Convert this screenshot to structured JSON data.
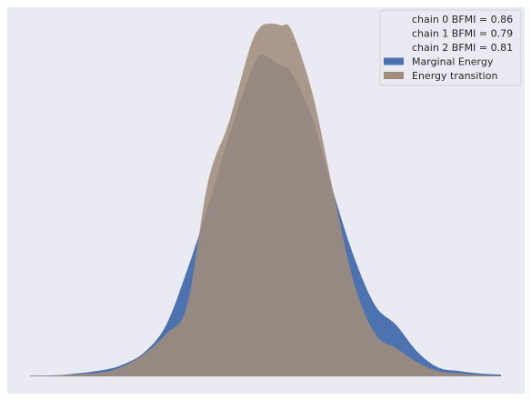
{
  "chart_data": {
    "type": "area",
    "title": "",
    "xlabel": "",
    "ylabel": "",
    "grid": true,
    "legend_position": "top-right",
    "xlim": [
      -11.5,
      11.0
    ],
    "ylim": [
      0,
      1.0
    ],
    "legend": [
      {
        "label": "chain  0 BFMI = 0.86",
        "swatch": false
      },
      {
        "label": "chain  1 BFMI = 0.79",
        "swatch": false
      },
      {
        "label": "chain  2 BFMI = 0.81",
        "swatch": false
      },
      {
        "label": "Marginal Energy",
        "swatch": true,
        "color": "#4c72b0"
      },
      {
        "label": "Energy transition",
        "swatch": true,
        "color": "#a08c7b"
      }
    ],
    "series": [
      {
        "name": "Marginal Energy",
        "color": "#4c72b0",
        "x": [
          -11.5,
          -10,
          -8,
          -7,
          -6,
          -5,
          -4,
          -3,
          -2,
          -1,
          -0.5,
          0,
          0.5,
          1,
          2,
          3,
          4,
          5,
          6,
          7,
          8,
          9,
          10,
          11
        ],
        "y": [
          0.002,
          0.004,
          0.018,
          0.035,
          0.07,
          0.145,
          0.3,
          0.48,
          0.68,
          0.855,
          0.91,
          0.9,
          0.88,
          0.86,
          0.73,
          0.52,
          0.335,
          0.2,
          0.145,
          0.07,
          0.025,
          0.015,
          0.008,
          0.005
        ]
      },
      {
        "name": "Energy transition",
        "color": "#a08c7b",
        "x": [
          -11.5,
          -10,
          -8,
          -7,
          -6,
          -5,
          -4,
          -3,
          -2,
          -1,
          -0.5,
          0,
          0.5,
          1,
          2,
          3,
          4,
          5,
          6,
          7,
          8,
          9,
          10,
          11
        ],
        "y": [
          0.002,
          0.004,
          0.012,
          0.03,
          0.065,
          0.12,
          0.2,
          0.55,
          0.72,
          0.93,
          0.99,
          1.0,
          0.995,
          0.98,
          0.8,
          0.52,
          0.26,
          0.12,
          0.08,
          0.04,
          0.015,
          0.008,
          0.004,
          0.002
        ]
      }
    ]
  }
}
